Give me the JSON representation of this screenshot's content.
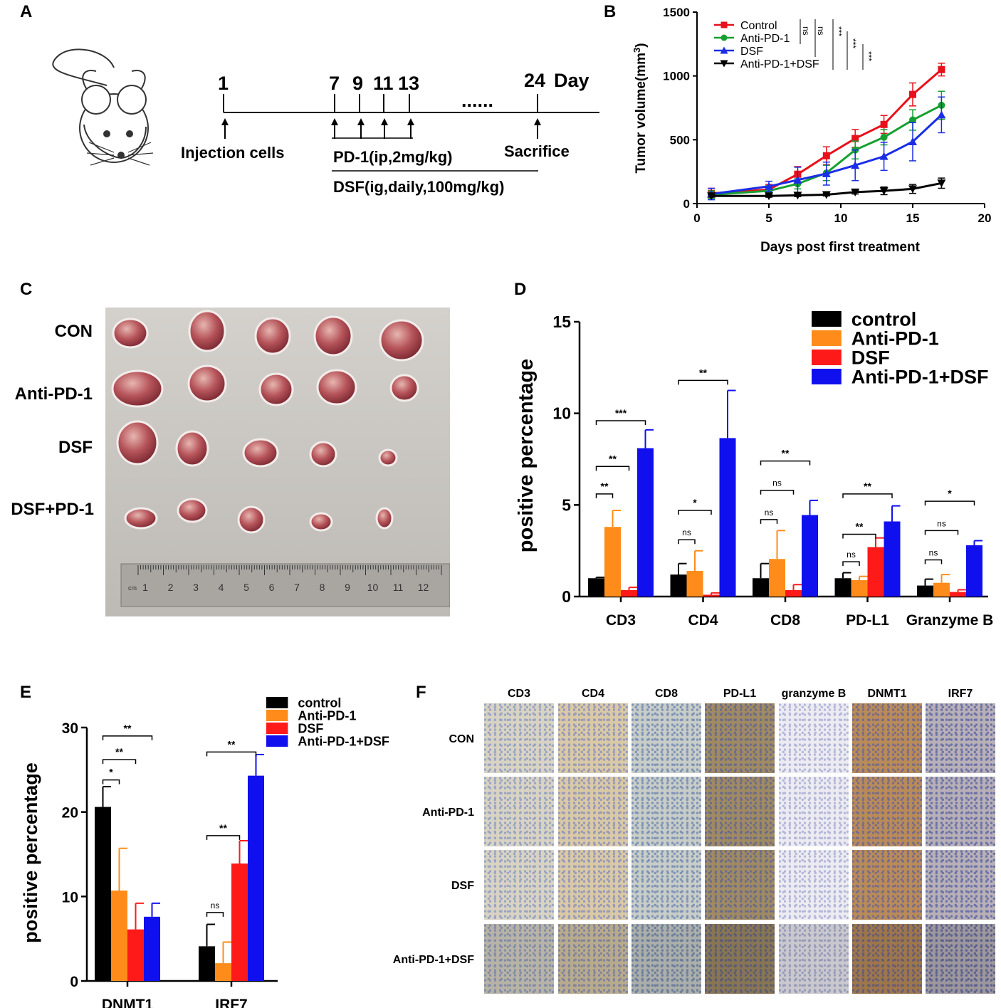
{
  "panels": {
    "A": {
      "label": "A",
      "days": [
        "1",
        "7",
        "9",
        "11",
        "13",
        "24"
      ],
      "day_word": "Day",
      "ellipsis": "......",
      "injection": "Injection cells",
      "sacrifice": "Sacrifice",
      "pd1_regimen": "PD-1(ip,2mg/kg)",
      "dsf_regimen": "DSF(ig,daily,100mg/kg)"
    },
    "B": {
      "label": "B"
    },
    "C": {
      "label": "C",
      "rows": [
        "CON",
        "Anti-PD-1",
        "DSF",
        "DSF+PD-1"
      ],
      "ruler_unit": "cm",
      "ruler_numbers": [
        "1",
        "2",
        "3",
        "4",
        "5",
        "6",
        "7",
        "8",
        "9",
        "10",
        "11",
        "12"
      ]
    },
    "D": {
      "label": "D"
    },
    "E": {
      "label": "E"
    },
    "F": {
      "label": "F",
      "columns": [
        "CD3",
        "CD4",
        "CD8",
        "PD-L1",
        "granzyme B",
        "DNMT1",
        "IRF7"
      ],
      "rows": [
        "CON",
        "Anti-PD-1",
        "DSF",
        "Anti-PD-1+DSF"
      ]
    }
  },
  "chart_data": [
    {
      "id": "B",
      "type": "line",
      "xlabel": "Days post first treatment",
      "ylabel": "Tumor volume(mm",
      "ylabel_sup": "3",
      "ylabel_close": ")",
      "xlim": [
        0,
        20
      ],
      "ylim": [
        0,
        1500
      ],
      "xticks": [
        "0",
        "5",
        "10",
        "15",
        "20"
      ],
      "yticks": [
        "0",
        "500",
        "1000",
        "1500"
      ],
      "x": [
        1,
        5,
        7,
        9,
        11,
        13,
        15,
        17
      ],
      "series": [
        {
          "name": "Control",
          "color": "#e8101a",
          "marker": "square",
          "values": [
            80,
            110,
            230,
            375,
            510,
            620,
            855,
            1050
          ],
          "errors": [
            40,
            40,
            60,
            70,
            70,
            70,
            90,
            50
          ]
        },
        {
          "name": "Anti-PD-1",
          "color": "#16a030",
          "marker": "circle",
          "values": [
            70,
            100,
            155,
            240,
            420,
            520,
            655,
            770
          ],
          "errors": [
            30,
            40,
            40,
            60,
            70,
            60,
            80,
            110
          ]
        },
        {
          "name": "DSF",
          "color": "#1a2ee6",
          "marker": "triangle",
          "values": [
            75,
            135,
            185,
            235,
            300,
            370,
            485,
            695
          ],
          "errors": [
            45,
            40,
            100,
            90,
            120,
            110,
            150,
            140
          ]
        },
        {
          "name": "Anti-PD-1+DSF",
          "color": "#000000",
          "marker": "triangle-down",
          "values": [
            60,
            60,
            65,
            70,
            90,
            100,
            115,
            160
          ],
          "errors": [
            10,
            10,
            10,
            10,
            15,
            30,
            35,
            40
          ]
        }
      ],
      "significance": [
        {
          "label": "ns",
          "series": 1
        },
        {
          "label": "ns",
          "series": 2
        },
        {
          "label": "***",
          "series": 3
        },
        {
          "label": "***",
          "series": 2,
          "from": 3
        },
        {
          "label": "***",
          "series": 3,
          "from": 1
        }
      ]
    },
    {
      "id": "D",
      "type": "bar",
      "ylabel": "positive percentage",
      "ylim": [
        0,
        15
      ],
      "yticks": [
        "0",
        "5",
        "10",
        "15"
      ],
      "categories": [
        "CD3",
        "CD4",
        "CD8",
        "PD-L1",
        "Granzyme B"
      ],
      "series": [
        {
          "name": "control",
          "color": "#000000",
          "values": [
            1.0,
            1.2,
            1.0,
            1.0,
            0.6
          ],
          "errors": [
            0.05,
            0.6,
            0.8,
            0.3,
            0.35
          ]
        },
        {
          "name": "Anti-PD-1",
          "color": "#ff8c1a",
          "values": [
            3.8,
            1.4,
            2.05,
            0.9,
            0.75
          ],
          "errors": [
            0.9,
            1.1,
            1.55,
            0.2,
            0.45
          ]
        },
        {
          "name": "DSF",
          "color": "#ff1a1a",
          "values": [
            0.35,
            0.1,
            0.35,
            2.7,
            0.25
          ],
          "errors": [
            0.15,
            0.1,
            0.3,
            0.5,
            0.12
          ]
        },
        {
          "name": "Anti-PD-1+DSF",
          "color": "#1010ee",
          "values": [
            8.1,
            8.65,
            4.45,
            4.1,
            2.8
          ],
          "errors": [
            1.0,
            2.6,
            0.8,
            0.85,
            0.25
          ]
        }
      ],
      "significance": [
        {
          "cat": 0,
          "from": 0,
          "to": 1,
          "label": "**",
          "y": 5.6
        },
        {
          "cat": 0,
          "from": 0,
          "to": 2,
          "label": "**",
          "y": 7.1
        },
        {
          "cat": 0,
          "from": 0,
          "to": 3,
          "label": "***",
          "y": 9.6
        },
        {
          "cat": 1,
          "from": 0,
          "to": 1,
          "label": "ns",
          "y": 3.1
        },
        {
          "cat": 1,
          "from": 0,
          "to": 2,
          "label": "*",
          "y": 4.7
        },
        {
          "cat": 1,
          "from": 0,
          "to": 3,
          "label": "**",
          "y": 11.8
        },
        {
          "cat": 2,
          "from": 0,
          "to": 1,
          "label": "ns",
          "y": 4.2
        },
        {
          "cat": 2,
          "from": 0,
          "to": 2,
          "label": "ns",
          "y": 5.8
        },
        {
          "cat": 2,
          "from": 0,
          "to": 3,
          "label": "**",
          "y": 7.4
        },
        {
          "cat": 3,
          "from": 0,
          "to": 1,
          "label": "ns",
          "y": 1.9
        },
        {
          "cat": 3,
          "from": 0,
          "to": 2,
          "label": "**",
          "y": 3.4
        },
        {
          "cat": 3,
          "from": 0,
          "to": 3,
          "label": "**",
          "y": 5.6
        },
        {
          "cat": 4,
          "from": 0,
          "to": 1,
          "label": "ns",
          "y": 2.0
        },
        {
          "cat": 4,
          "from": 0,
          "to": 2,
          "label": "ns",
          "y": 3.6
        },
        {
          "cat": 4,
          "from": 0,
          "to": 3,
          "label": "*",
          "y": 5.2
        }
      ]
    },
    {
      "id": "E",
      "type": "bar",
      "ylabel": "positive percentage",
      "ylim": [
        0,
        30
      ],
      "yticks": [
        "0",
        "10",
        "20",
        "30"
      ],
      "categories": [
        "DNMT1",
        "IRF7"
      ],
      "series": [
        {
          "name": "control",
          "color": "#000000",
          "values": [
            20.6,
            4.1
          ],
          "errors": [
            2.4,
            2.6
          ]
        },
        {
          "name": "Anti-PD-1",
          "color": "#ff8c1a",
          "values": [
            10.7,
            2.1
          ],
          "errors": [
            5.0,
            2.5
          ]
        },
        {
          "name": "DSF",
          "color": "#ff1a1a",
          "values": [
            6.1,
            13.9
          ],
          "errors": [
            3.1,
            2.7
          ]
        },
        {
          "name": "Anti-PD-1+DSF",
          "color": "#1010ee",
          "values": [
            7.6,
            24.3
          ],
          "errors": [
            1.6,
            2.5
          ]
        }
      ],
      "significance": [
        {
          "cat": 0,
          "from": 0,
          "to": 1,
          "label": "*",
          "y": 23.8
        },
        {
          "cat": 0,
          "from": 0,
          "to": 2,
          "label": "**",
          "y": 26.2
        },
        {
          "cat": 0,
          "from": 0,
          "to": 3,
          "label": "**",
          "y": 29.0
        },
        {
          "cat": 1,
          "from": 0,
          "to": 1,
          "label": "ns",
          "y": 8.1
        },
        {
          "cat": 1,
          "from": 0,
          "to": 2,
          "label": "**",
          "y": 17.2
        },
        {
          "cat": 1,
          "from": 0,
          "to": 3,
          "label": "**",
          "y": 27.1
        }
      ]
    }
  ]
}
